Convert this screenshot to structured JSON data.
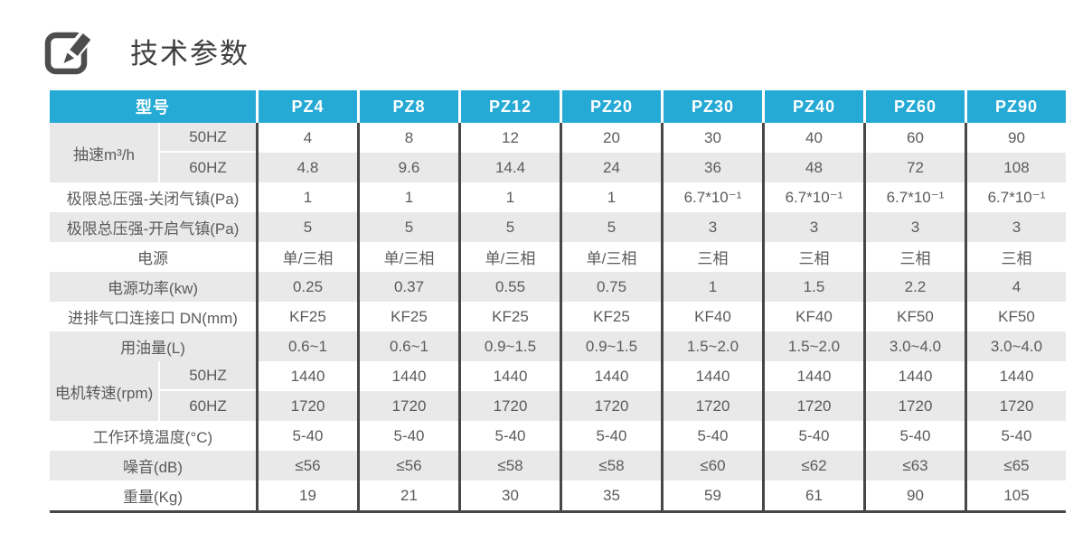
{
  "page": {
    "title": "技术参数",
    "title_icon": "edit-pencil-icon"
  },
  "table": {
    "header": {
      "model_label": "型号",
      "models": [
        "PZ4",
        "PZ8",
        "PZ12",
        "PZ20",
        "PZ30",
        "PZ40",
        "PZ60",
        "PZ90"
      ]
    },
    "rows": [
      {
        "label": "抽速m³/h",
        "subrows": [
          {
            "sublabel": "50HZ",
            "values": [
              "4",
              "8",
              "12",
              "20",
              "30",
              "40",
              "60",
              "90"
            ]
          },
          {
            "sublabel": "60HZ",
            "values": [
              "4.8",
              "9.6",
              "14.4",
              "24",
              "36",
              "48",
              "72",
              "108"
            ]
          }
        ]
      },
      {
        "label": "极限总压强-关闭气镇(Pa)",
        "values": [
          "1",
          "1",
          "1",
          "1",
          "6.7*10⁻¹",
          "6.7*10⁻¹",
          "6.7*10⁻¹",
          "6.7*10⁻¹"
        ]
      },
      {
        "label": "极限总压强-开启气镇(Pa)",
        "values": [
          "5",
          "5",
          "5",
          "5",
          "3",
          "3",
          "3",
          "3"
        ]
      },
      {
        "label": "电源",
        "values": [
          "单/三相",
          "单/三相",
          "单/三相",
          "单/三相",
          "三相",
          "三相",
          "三相",
          "三相"
        ]
      },
      {
        "label": "电源功率(kw)",
        "values": [
          "0.25",
          "0.37",
          "0.55",
          "0.75",
          "1",
          "1.5",
          "2.2",
          "4"
        ]
      },
      {
        "label": "进排气口连接口 DN(mm)",
        "values": [
          "KF25",
          "KF25",
          "KF25",
          "KF25",
          "KF40",
          "KF40",
          "KF50",
          "KF50"
        ]
      },
      {
        "label": "用油量(L)",
        "values": [
          "0.6~1",
          "0.6~1",
          "0.9~1.5",
          "0.9~1.5",
          "1.5~2.0",
          "1.5~2.0",
          "3.0~4.0",
          "3.0~4.0"
        ]
      },
      {
        "label": "电机转速(rpm)",
        "subrows": [
          {
            "sublabel": "50HZ",
            "values": [
              "1440",
              "1440",
              "1440",
              "1440",
              "1440",
              "1440",
              "1440",
              "1440"
            ]
          },
          {
            "sublabel": "60HZ",
            "values": [
              "1720",
              "1720",
              "1720",
              "1720",
              "1720",
              "1720",
              "1720",
              "1720"
            ]
          }
        ]
      },
      {
        "label": "工作环境温度(°C)",
        "values": [
          "5-40",
          "5-40",
          "5-40",
          "5-40",
          "5-40",
          "5-40",
          "5-40",
          "5-40"
        ]
      },
      {
        "label": "噪音(dB)",
        "values": [
          "≤56",
          "≤56",
          "≤58",
          "≤58",
          "≤60",
          "≤62",
          "≤63",
          "≤65"
        ]
      },
      {
        "label": "重量(Kg)",
        "values": [
          "19",
          "21",
          "30",
          "35",
          "59",
          "61",
          "90",
          "105"
        ]
      }
    ]
  },
  "colors": {
    "header_bg": "#25AAD5",
    "stripe_bg": "#E9E9E9",
    "label_bg": "#E8E8E8",
    "divider": "#474747",
    "text": "#5B5B5B",
    "header_text": "#FFFFFF",
    "title_text": "#3F3F3F",
    "icon": "#4D4D4D"
  }
}
